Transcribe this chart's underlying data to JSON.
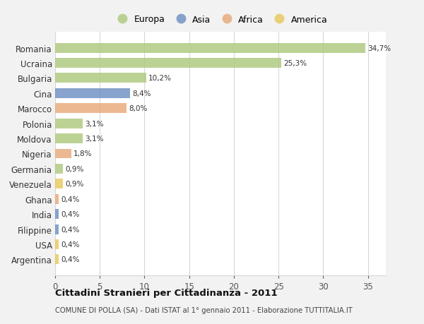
{
  "countries": [
    "Romania",
    "Ucraina",
    "Bulgaria",
    "Cina",
    "Marocco",
    "Polonia",
    "Moldova",
    "Nigeria",
    "Germania",
    "Venezuela",
    "Ghana",
    "India",
    "Filippine",
    "USA",
    "Argentina"
  ],
  "values": [
    34.7,
    25.3,
    10.2,
    8.4,
    8.0,
    3.1,
    3.1,
    1.8,
    0.9,
    0.9,
    0.4,
    0.4,
    0.4,
    0.4,
    0.4
  ],
  "labels": [
    "34,7%",
    "25,3%",
    "10,2%",
    "8,4%",
    "8,0%",
    "3,1%",
    "3,1%",
    "1,8%",
    "0,9%",
    "0,9%",
    "0,4%",
    "0,4%",
    "0,4%",
    "0,4%",
    "0,4%"
  ],
  "categories": [
    "Europa",
    "Asia",
    "Africa",
    "America"
  ],
  "bar_colors": [
    "#adc97e",
    "#adc97e",
    "#adc97e",
    "#6e8fc2",
    "#e8a97a",
    "#adc97e",
    "#adc97e",
    "#e8a97a",
    "#adc97e",
    "#e8c85a",
    "#e8a97a",
    "#6e8fc2",
    "#6e8fc2",
    "#e8c85a",
    "#e8c85a"
  ],
  "legend_colors": [
    "#adc97e",
    "#6e8fc2",
    "#e8a97a",
    "#e8c85a"
  ],
  "title": "Cittadini Stranieri per Cittadinanza - 2011",
  "subtitle": "COMUNE DI POLLA (SA) - Dati ISTAT al 1° gennaio 2011 - Elaborazione TUTTITALIA.IT",
  "xlim": [
    0,
    37
  ],
  "xticks": [
    0,
    5,
    10,
    15,
    20,
    25,
    30,
    35
  ],
  "background_color": "#f2f2f2",
  "plot_background": "#ffffff",
  "grid_color": "#d8d8d8",
  "bar_height": 0.65,
  "bar_alpha": 0.82
}
